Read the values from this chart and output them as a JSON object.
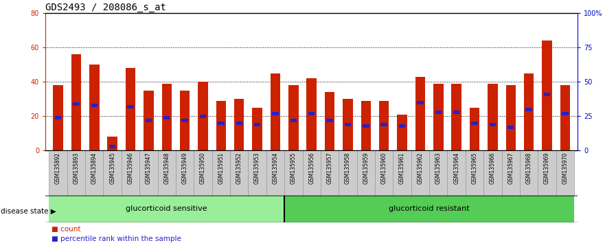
{
  "title": "GDS2493 / 208086_s_at",
  "samples": [
    "GSM135892",
    "GSM135893",
    "GSM135894",
    "GSM135945",
    "GSM135946",
    "GSM135947",
    "GSM135948",
    "GSM135949",
    "GSM135950",
    "GSM135951",
    "GSM135952",
    "GSM135953",
    "GSM135954",
    "GSM135955",
    "GSM135956",
    "GSM135957",
    "GSM135958",
    "GSM135959",
    "GSM135960",
    "GSM135961",
    "GSM135962",
    "GSM135963",
    "GSM135964",
    "GSM135965",
    "GSM135966",
    "GSM135967",
    "GSM135968",
    "GSM135969",
    "GSM135970"
  ],
  "counts": [
    38,
    56,
    50,
    8,
    48,
    35,
    39,
    35,
    40,
    29,
    30,
    25,
    45,
    38,
    42,
    34,
    30,
    29,
    29,
    21,
    43,
    39,
    39,
    25,
    39,
    38,
    45,
    64,
    38
  ],
  "percentile_ranks": [
    24,
    34,
    33,
    3,
    32,
    22,
    24,
    22,
    25,
    20,
    20,
    19,
    27,
    22,
    27,
    22,
    19,
    18,
    19,
    18,
    35,
    28,
    28,
    20,
    19,
    17,
    30,
    41,
    27
  ],
  "group_sensitive_count": 13,
  "group_resistant_count": 16,
  "bar_color": "#cc2200",
  "percentile_color": "#2222cc",
  "bg_color": "#ffffff",
  "plot_bg_color": "#ffffff",
  "label_bg_color": "#cccccc",
  "sensitive_color": "#99ee99",
  "resistant_color": "#55cc55",
  "ylim_left": [
    0,
    80
  ],
  "ylim_right": [
    0,
    100
  ],
  "left_ticks": [
    0,
    20,
    40,
    60,
    80
  ],
  "right_ticks": [
    0,
    25,
    50,
    75,
    100
  ],
  "right_tick_labels": [
    "0",
    "25",
    "50",
    "75",
    "100%"
  ],
  "legend_count_label": "count",
  "legend_percentile_label": "percentile rank within the sample",
  "disease_state_label": "disease state",
  "sensitive_label": "glucorticoid sensitive",
  "resistant_label": "glucorticoid resistant",
  "bar_width": 0.55,
  "title_fontsize": 10,
  "tick_fontsize": 7,
  "sample_fontsize": 5.5,
  "legend_fontsize": 7.5,
  "disease_fontsize": 8
}
